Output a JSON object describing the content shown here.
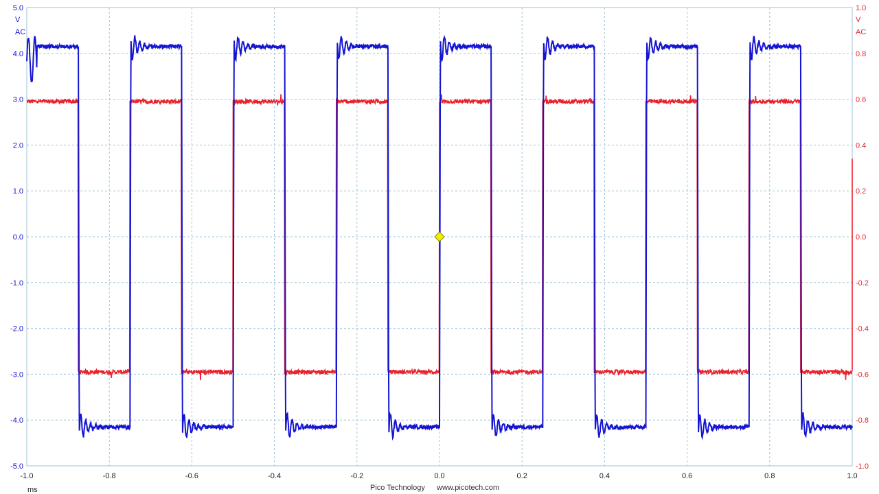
{
  "chart_data": {
    "type": "line",
    "title": "",
    "xlabel": "ms",
    "xlim": [
      -1.0,
      1.0
    ],
    "x_ticks": [
      "-1.0",
      "-0.8",
      "-0.6",
      "-0.4",
      "-0.2",
      "0.0",
      "0.2",
      "0.4",
      "0.6",
      "0.8",
      "1.0"
    ],
    "grid": true,
    "left_axis": {
      "unit": "V",
      "coupling": "AC",
      "ylim": [
        -5.0,
        5.0
      ],
      "ticks": [
        "5.0",
        "4.0",
        "3.0",
        "2.0",
        "1.0",
        "0.0",
        "-1.0",
        "-2.0",
        "-3.0",
        "-4.0",
        "-5.0"
      ],
      "color": "#1414d2"
    },
    "right_axis": {
      "unit": "V",
      "coupling": "AC",
      "ylim": [
        -1.0,
        1.0
      ],
      "ticks": [
        "1.0",
        "0.8",
        "0.6",
        "0.4",
        "0.2",
        "0.0",
        "-0.2",
        "-0.4",
        "-0.6",
        "-0.8",
        "-1.0"
      ],
      "color": "#e8232d"
    },
    "series": [
      {
        "axis": "left",
        "color": "#1414d2",
        "shape": "square wave with ringing overshoot",
        "high": 4.15,
        "low": -4.15,
        "overshoot_peak": 4.55,
        "transitions": [
          -0.875,
          -0.75,
          -0.625,
          -0.5,
          -0.375,
          -0.25,
          -0.125,
          0.0,
          0.125,
          0.25,
          0.375,
          0.5,
          0.625,
          0.75,
          0.875
        ],
        "first_level_high": true
      },
      {
        "axis": "right",
        "color": "#e8232d",
        "shape": "square wave",
        "high": 0.59,
        "low": -0.59,
        "transitions": [
          -0.875,
          -0.75,
          -0.625,
          -0.5,
          -0.375,
          -0.25,
          -0.125,
          0.0,
          0.125,
          0.25,
          0.375,
          0.5,
          0.625,
          0.75,
          0.875
        ],
        "first_level_high": true
      }
    ],
    "trigger_marker": {
      "x": 0.0,
      "y": 0.0,
      "color": "#f2f000"
    }
  },
  "footer": {
    "brand": "Pico Technology",
    "url": "www.picotech.com"
  }
}
